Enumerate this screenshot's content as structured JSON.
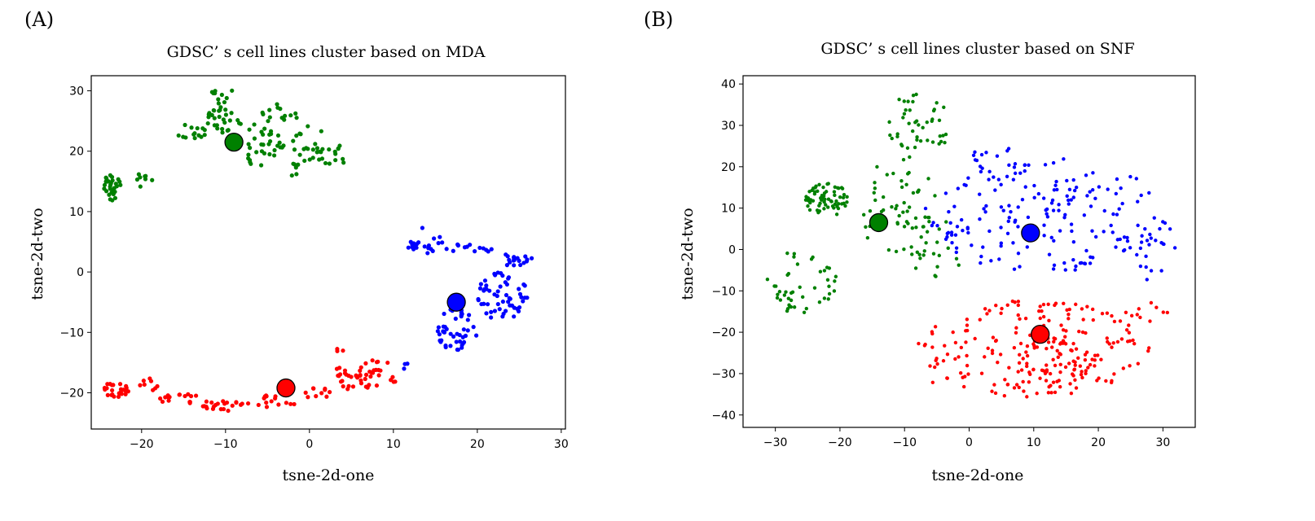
{
  "panels": [
    {
      "label": "(A)"
    },
    {
      "label": "(B)"
    }
  ],
  "colors": {
    "cluster_1": "#008000",
    "cluster_2": "#0000ff",
    "cluster_3": "#ff0000"
  },
  "chart_data": [
    {
      "type": "scatter",
      "title": "GDSC’ s cell lines cluster based on MDA",
      "xlabel": "tsne-2d-one",
      "ylabel": "tsne-2d-two",
      "xlim": [
        -26,
        30.5
      ],
      "ylim": [
        -26,
        32.5
      ],
      "xticks": [
        -20,
        -10,
        0,
        10,
        20,
        30
      ],
      "yticks": [
        -20,
        -10,
        0,
        10,
        20,
        30
      ],
      "centroids": [
        {
          "x": -9,
          "y": 21.5,
          "color": "#008000"
        },
        {
          "x": 17.5,
          "y": -5,
          "color": "#0000ff"
        },
        {
          "x": -2.8,
          "y": -19.2,
          "color": "#ff0000"
        }
      ],
      "clusters": [
        {
          "color": "#008000",
          "regions": [
            {
              "cx": -23.5,
              "cy": 14,
              "rx": 1.2,
              "ry": 2.2,
              "n": 30
            },
            {
              "cx": -20,
              "cy": 15,
              "rx": 1.8,
              "ry": 1.2,
              "n": 8
            },
            {
              "cx": -14,
              "cy": 23,
              "rx": 2,
              "ry": 1.5,
              "n": 14
            },
            {
              "cx": -10,
              "cy": 26,
              "rx": 2.5,
              "ry": 3,
              "n": 30
            },
            {
              "cx": -6,
              "cy": 21,
              "rx": 3,
              "ry": 3.5,
              "n": 35
            },
            {
              "cx": -3.5,
              "cy": 26,
              "rx": 2.5,
              "ry": 1.8,
              "n": 14
            },
            {
              "cx": 0,
              "cy": 21,
              "rx": 2,
              "ry": 3.5,
              "n": 22
            },
            {
              "cx": 3,
              "cy": 19.5,
              "rx": 2,
              "ry": 1.8,
              "n": 12
            },
            {
              "cx": -10.5,
              "cy": 29.5,
              "rx": 1.5,
              "ry": 1,
              "n": 8
            },
            {
              "cx": -1.5,
              "cy": 17,
              "rx": 1.5,
              "ry": 1.2,
              "n": 6
            }
          ]
        },
        {
          "color": "#0000ff",
          "regions": [
            {
              "cx": 14,
              "cy": 5.5,
              "rx": 2,
              "ry": 2.5,
              "n": 16
            },
            {
              "cx": 19,
              "cy": 4,
              "rx": 3,
              "ry": 1,
              "n": 14
            },
            {
              "cx": 25,
              "cy": 2,
              "rx": 2,
              "ry": 1.5,
              "n": 18
            },
            {
              "cx": 23,
              "cy": -4,
              "rx": 3,
              "ry": 4,
              "n": 55
            },
            {
              "cx": 17.5,
              "cy": -9.5,
              "rx": 2.5,
              "ry": 3.5,
              "n": 45
            },
            {
              "cx": 12.5,
              "cy": 4.5,
              "rx": 1,
              "ry": 0.8,
              "n": 6
            },
            {
              "cx": 11.2,
              "cy": -15.5,
              "rx": 0.6,
              "ry": 0.8,
              "n": 3
            }
          ]
        },
        {
          "color": "#ff0000",
          "regions": [
            {
              "cx": -23,
              "cy": -19.5,
              "rx": 1.5,
              "ry": 1.5,
              "n": 25
            },
            {
              "cx": -19,
              "cy": -18.5,
              "rx": 1.5,
              "ry": 1.2,
              "n": 8
            },
            {
              "cx": -15.5,
              "cy": -21,
              "rx": 2.5,
              "ry": 1,
              "n": 16
            },
            {
              "cx": -10,
              "cy": -22,
              "rx": 3,
              "ry": 1,
              "n": 22
            },
            {
              "cx": -4,
              "cy": -21.5,
              "rx": 2.5,
              "ry": 1.2,
              "n": 15
            },
            {
              "cx": 1,
              "cy": -20,
              "rx": 2,
              "ry": 1,
              "n": 10
            },
            {
              "cx": 4.5,
              "cy": -17.5,
              "rx": 2,
              "ry": 2,
              "n": 20
            },
            {
              "cx": 8,
              "cy": -17,
              "rx": 2.5,
              "ry": 2.5,
              "n": 30
            },
            {
              "cx": 3.5,
              "cy": -13,
              "rx": 0.6,
              "ry": 0.6,
              "n": 3
            }
          ]
        }
      ]
    },
    {
      "type": "scatter",
      "title": "GDSC’ s cell lines cluster based on SNF",
      "xlabel": "tsne-2d-one",
      "ylabel": "tsne-2d-two",
      "xlim": [
        -35,
        35
      ],
      "ylim": [
        -43,
        42
      ],
      "xticks": [
        -30,
        -20,
        -10,
        0,
        10,
        20,
        30
      ],
      "yticks": [
        -40,
        -30,
        -20,
        -10,
        0,
        10,
        20,
        30,
        40
      ],
      "centroids": [
        {
          "x": -14,
          "y": 6.5,
          "color": "#008000"
        },
        {
          "x": 9.5,
          "y": 4,
          "color": "#0000ff"
        },
        {
          "x": 11,
          "y": -20.5,
          "color": "#ff0000"
        }
      ],
      "clusters": [
        {
          "color": "#008000",
          "regions": [
            {
              "cx": -22,
              "cy": 12,
              "rx": 3.5,
              "ry": 4,
              "n": 65
            },
            {
              "cx": -26,
              "cy": -8,
              "rx": 5.5,
              "ry": 8,
              "n": 45
            },
            {
              "cx": -8,
              "cy": 30,
              "rx": 5,
              "ry": 8,
              "n": 45
            },
            {
              "cx": -11,
              "cy": 10,
              "rx": 6,
              "ry": 12,
              "n": 55
            },
            {
              "cx": -5,
              "cy": 0,
              "rx": 4,
              "ry": 8,
              "n": 20
            }
          ]
        },
        {
          "color": "#0000ff",
          "regions": [
            {
              "cx": 12,
              "cy": 8,
              "rx": 19,
              "ry": 14,
              "n": 170
            },
            {
              "cx": 4,
              "cy": 20,
              "rx": 5,
              "ry": 5,
              "n": 20
            },
            {
              "cx": 28,
              "cy": 0,
              "rx": 4,
              "ry": 8,
              "n": 20
            }
          ]
        },
        {
          "color": "#ff0000",
          "regions": [
            {
              "cx": 10,
              "cy": -24,
              "rx": 18,
              "ry": 12,
              "n": 180
            },
            {
              "cx": 14,
              "cy": -27,
              "rx": 6,
              "ry": 5,
              "n": 50
            },
            {
              "cx": -5,
              "cy": -25,
              "rx": 3,
              "ry": 8,
              "n": 10
            },
            {
              "cx": 28,
              "cy": -15,
              "rx": 4,
              "ry": 4,
              "n": 10
            }
          ]
        }
      ]
    }
  ]
}
